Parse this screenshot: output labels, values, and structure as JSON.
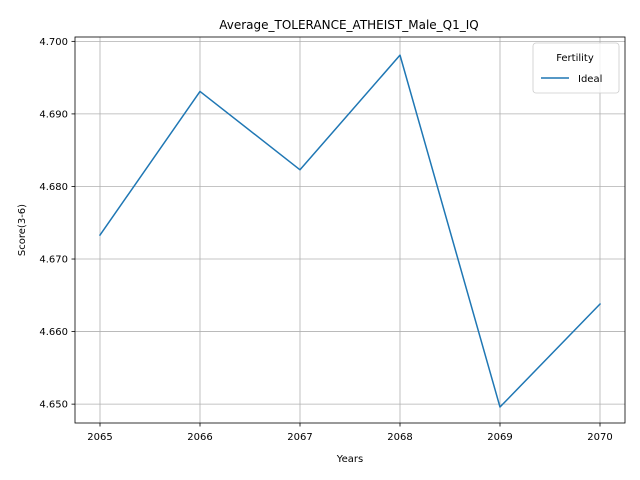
{
  "chart_data": {
    "type": "line",
    "title": "Average_TOLERANCE_ATHEIST_Male_Q1_IQ",
    "xlabel": "Years",
    "ylabel": "Score(3-6)",
    "x": [
      2065,
      2066,
      2067,
      2068,
      2069,
      2070
    ],
    "xticks": [
      "2065",
      "2066",
      "2067",
      "2068",
      "2069",
      "2070"
    ],
    "yticks": [
      "4.650",
      "4.660",
      "4.670",
      "4.680",
      "4.690",
      "4.700"
    ],
    "ytick_values": [
      4.65,
      4.66,
      4.67,
      4.68,
      4.69,
      4.7
    ],
    "xlim": [
      2064.75,
      2070.25
    ],
    "ylim": [
      4.6474,
      4.7006
    ],
    "grid": true,
    "legend": {
      "title": "Fertility",
      "placement": "top-right"
    },
    "series": [
      {
        "name": "Ideal",
        "color": "#1f77b4",
        "values": [
          4.6733,
          4.6931,
          4.6823,
          4.6981,
          4.6496,
          4.6638
        ]
      }
    ]
  }
}
